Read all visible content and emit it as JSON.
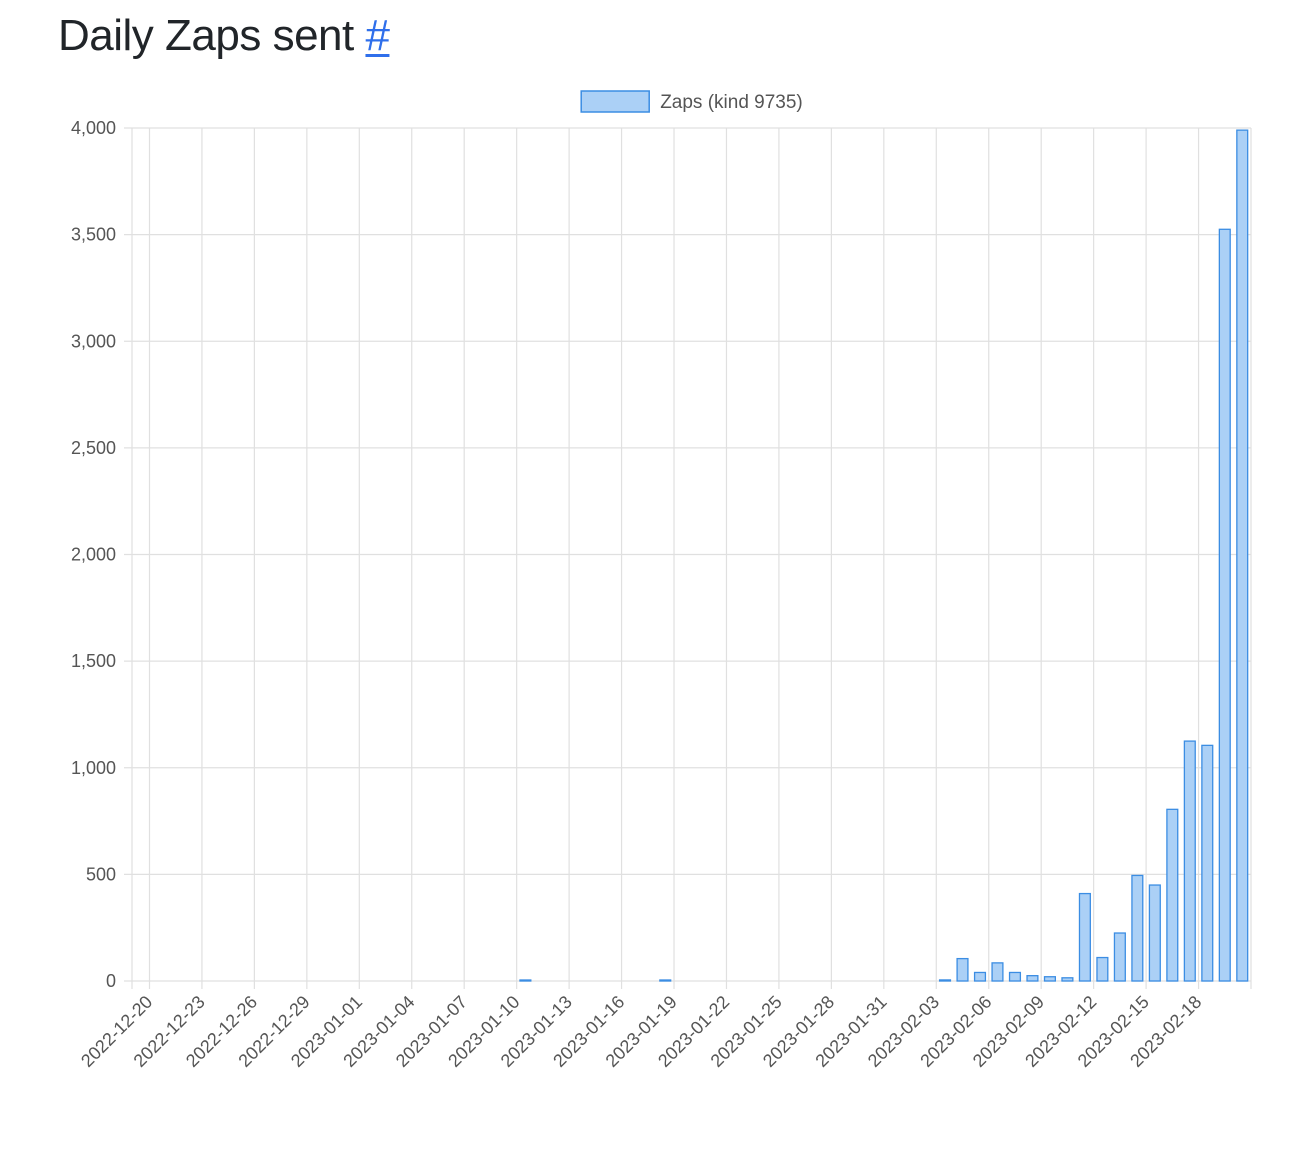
{
  "page": {
    "title": "Daily Zaps sent",
    "anchor_label": "#"
  },
  "colors": {
    "bar_fill": "#abd0f6",
    "bar_stroke": "#3b8de3",
    "grid": "#e0e0e0",
    "tick_text": "#555555",
    "link": "#2f6feb"
  },
  "chart_data": {
    "type": "bar",
    "title": "",
    "xlabel": "",
    "ylabel": "",
    "legend_position": "top-center",
    "grid": true,
    "series": [
      {
        "name": "Zaps (kind 9735)",
        "values": [
          0,
          0,
          0,
          0,
          0,
          0,
          0,
          0,
          0,
          0,
          0,
          0,
          0,
          0,
          0,
          0,
          0,
          0,
          0,
          0,
          0,
          0,
          1,
          0,
          0,
          0,
          0,
          0,
          0,
          0,
          1,
          0,
          0,
          0,
          0,
          0,
          0,
          0,
          0,
          0,
          0,
          0,
          0,
          0,
          0,
          0,
          5,
          105,
          40,
          85,
          40,
          25,
          20,
          15,
          410,
          110,
          225,
          495,
          450,
          805,
          1125,
          1105,
          3525,
          3990
        ]
      }
    ],
    "x_start_date": "2022-12-19",
    "x_tick_labels": [
      "2022-12-20",
      "2022-12-23",
      "2022-12-26",
      "2022-12-29",
      "2023-01-01",
      "2023-01-04",
      "2023-01-07",
      "2023-01-10",
      "2023-01-13",
      "2023-01-16",
      "2023-01-19",
      "2023-01-22",
      "2023-01-25",
      "2023-01-28",
      "2023-01-31",
      "2023-02-03",
      "2023-02-06",
      "2023-02-09",
      "2023-02-12",
      "2023-02-15",
      "2023-02-18"
    ],
    "y_tick_labels": [
      "0",
      "500",
      "1,000",
      "1,500",
      "2,000",
      "2,500",
      "3,000",
      "3,500",
      "4,000"
    ],
    "ylim": [
      0,
      4000
    ],
    "y_step": 500
  }
}
